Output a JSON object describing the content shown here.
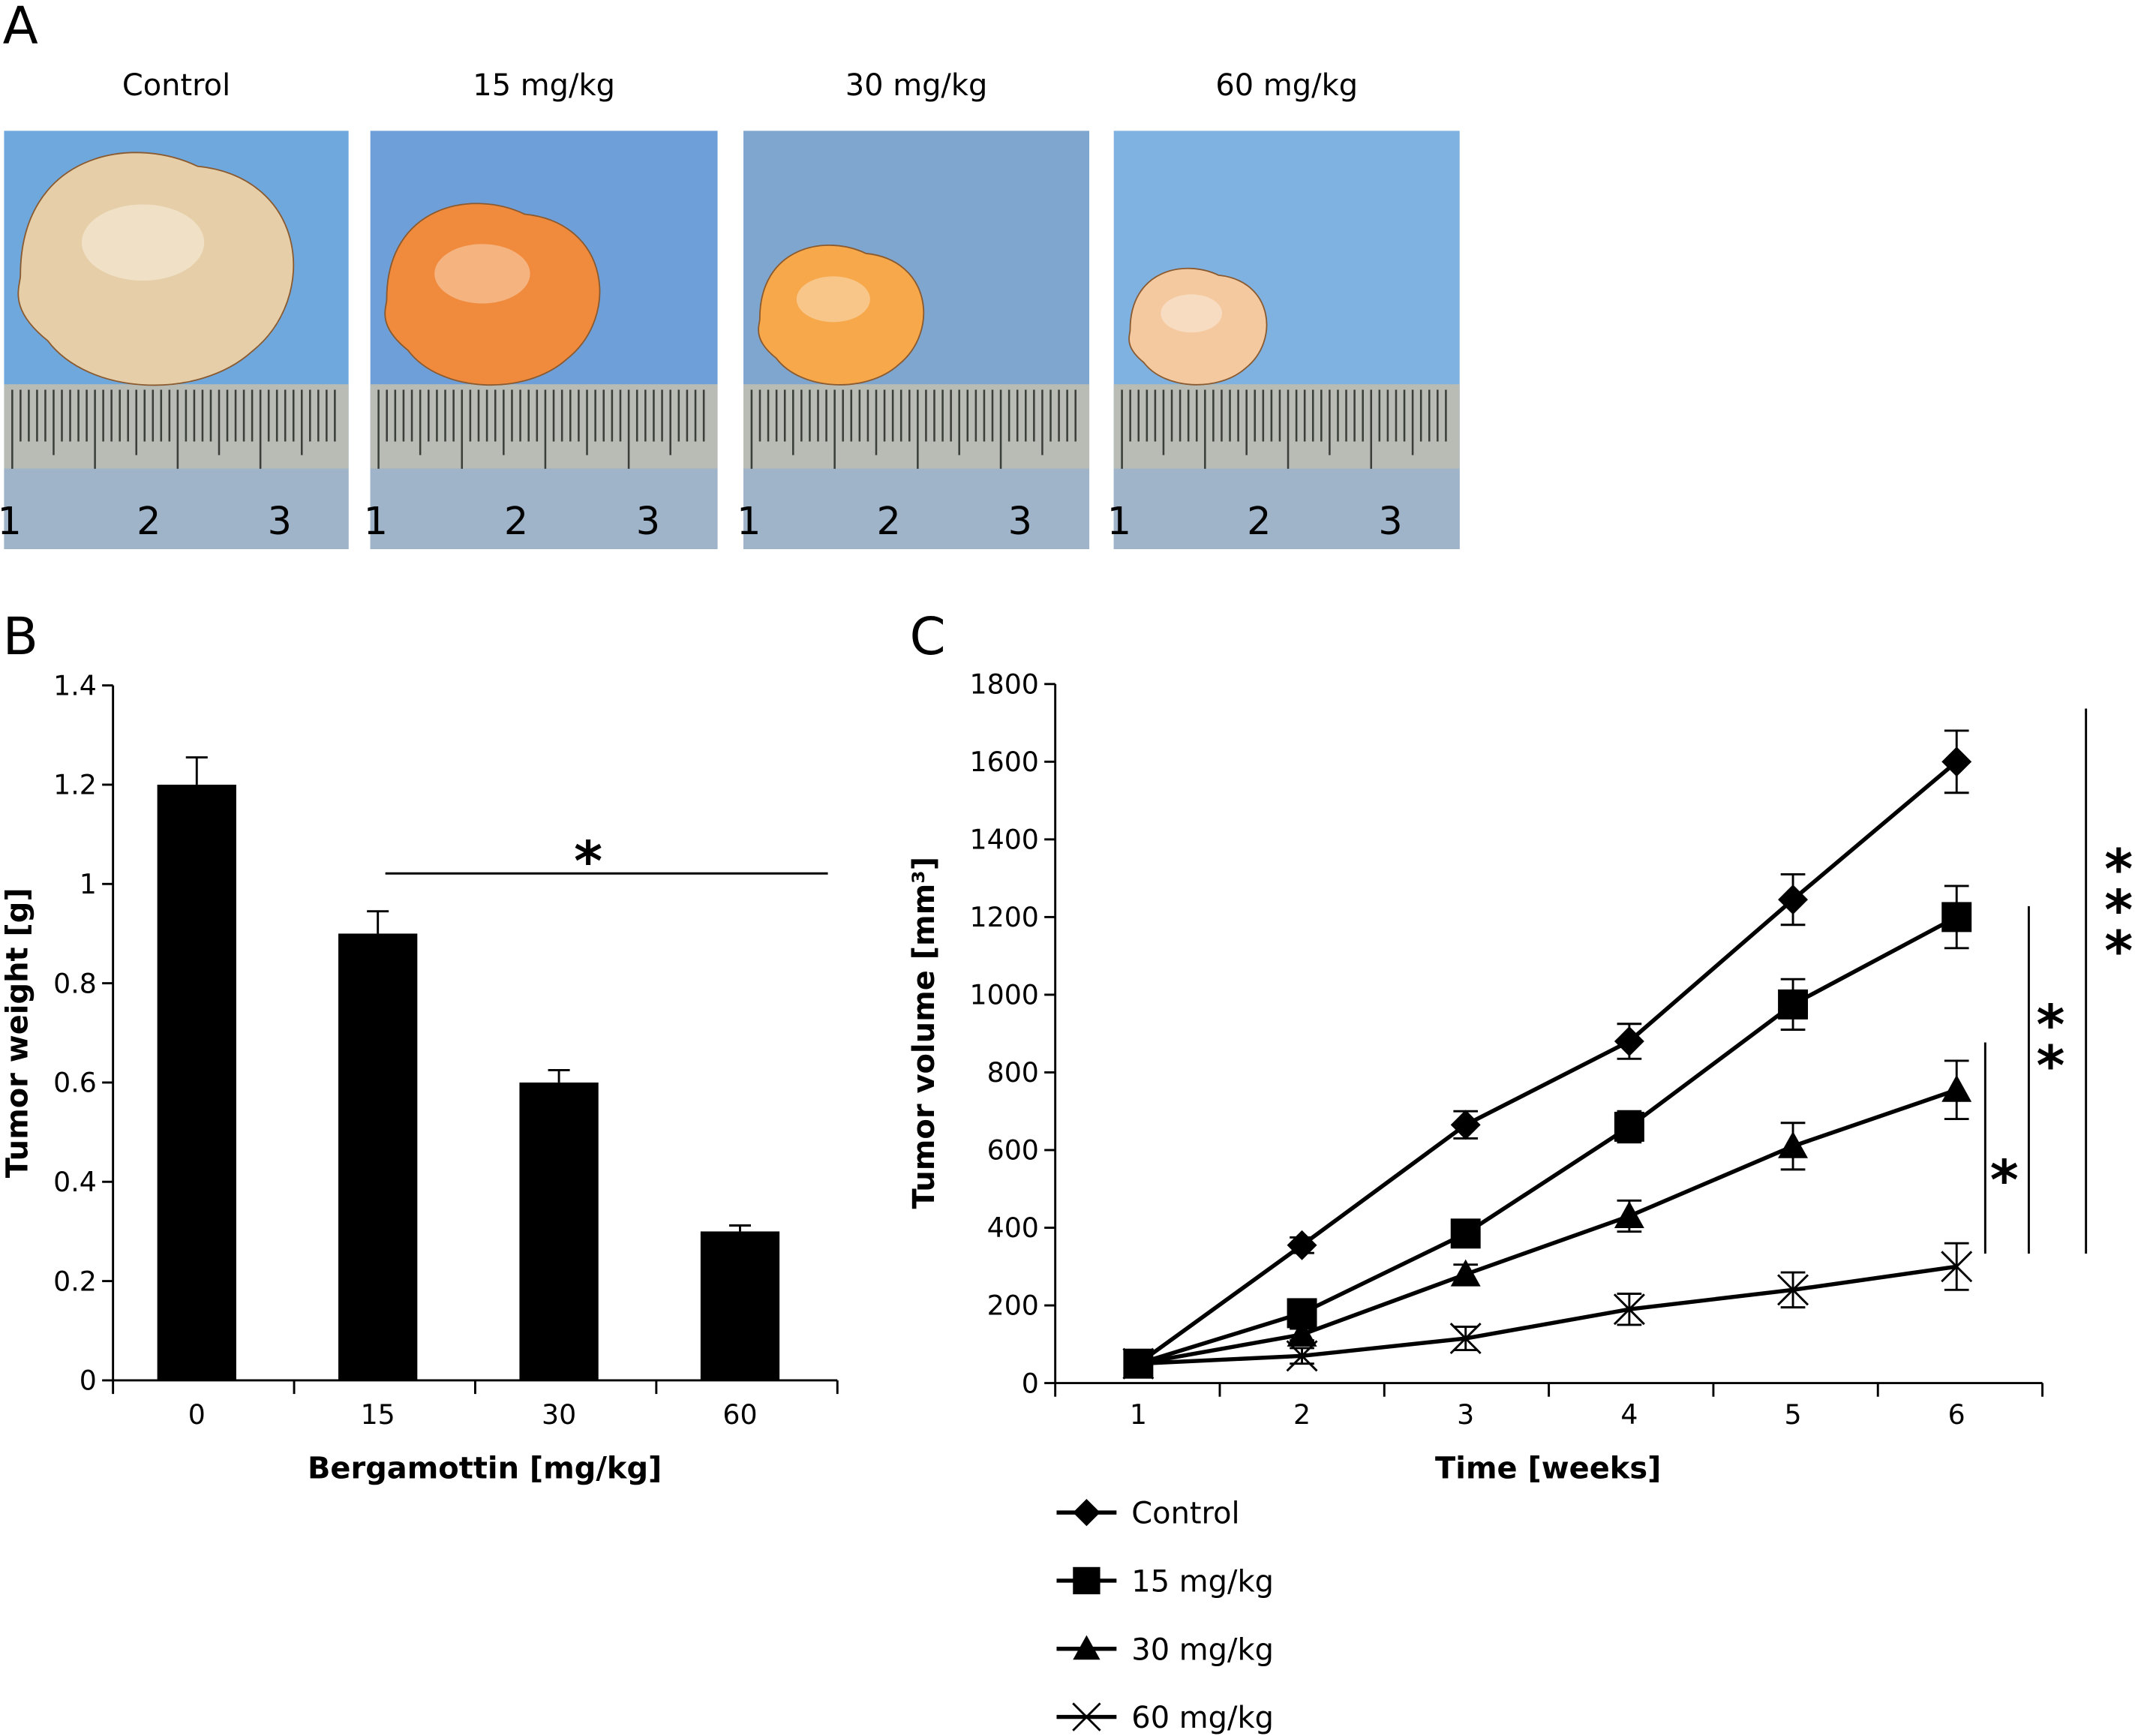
{
  "panels": {
    "A": {
      "letter": "A",
      "photos": [
        {
          "label": "Control",
          "tumor_color": "#e6cfa8",
          "tumor_scale": 1.0,
          "bg": "#6fa8dc"
        },
        {
          "label": "15 mg/kg",
          "tumor_color": "#f08a3c",
          "tumor_scale": 0.78,
          "bg": "#6f9fd8"
        },
        {
          "label": "30 mg/kg",
          "tumor_color": "#f6a84a",
          "tumor_scale": 0.6,
          "bg": "#7fa6cf"
        },
        {
          "label": "60 mg/kg",
          "tumor_color": "#f5c9a0",
          "tumor_scale": 0.5,
          "bg": "#7fb2e0"
        }
      ],
      "ruler_numbers": [
        "1",
        "2",
        "3"
      ]
    },
    "B": {
      "letter": "B"
    },
    "C": {
      "letter": "C"
    }
  },
  "chart_data": [
    {
      "id": "B",
      "type": "bar",
      "title": "",
      "xlabel": "Bergamottin [mg/kg]",
      "ylabel": "Tumor weight [g]",
      "categories": [
        "0",
        "15",
        "30",
        "60"
      ],
      "values": [
        1.2,
        0.9,
        0.6,
        0.3
      ],
      "error_upper": [
        0.055,
        0.045,
        0.025,
        0.012
      ],
      "ylim": [
        0,
        1.4
      ],
      "yticks": [
        0,
        0.2,
        0.4,
        0.6,
        0.8,
        1,
        1.2,
        1.4
      ],
      "ytick_labels": [
        "0",
        "0.2",
        "0.4",
        "0.6",
        "0.8",
        "1",
        "1.2",
        "1.4"
      ],
      "bar_color": "#000000",
      "grid": false,
      "annotations": [
        {
          "text": "*",
          "type": "significance-bracket",
          "from_category": "15",
          "to_category": "60"
        }
      ]
    },
    {
      "id": "C",
      "type": "line",
      "title": "",
      "xlabel": "Time [weeks]",
      "ylabel": "Tumor volume [mm³]",
      "x": [
        1,
        2,
        3,
        4,
        5,
        6
      ],
      "xlim": [
        0.5,
        6.5
      ],
      "ylim": [
        0,
        1800
      ],
      "yticks": [
        0,
        200,
        400,
        600,
        800,
        1000,
        1200,
        1400,
        1600,
        1800
      ],
      "ytick_labels": [
        "0",
        "200",
        "400",
        "600",
        "800",
        "1000",
        "1200",
        "1400",
        "1600",
        "1800"
      ],
      "xtick_labels": [
        "1",
        "2",
        "3",
        "4",
        "5",
        "6"
      ],
      "grid": false,
      "legend_position": "bottom-left",
      "series": [
        {
          "name": "Control",
          "marker": "diamond",
          "values": [
            50,
            355,
            665,
            880,
            1245,
            1600
          ],
          "errors": [
            20,
            20,
            35,
            45,
            65,
            80
          ]
        },
        {
          "name": "15 mg/kg",
          "marker": "square",
          "values": [
            50,
            180,
            385,
            660,
            975,
            1200
          ],
          "errors": [
            15,
            20,
            25,
            40,
            65,
            80
          ]
        },
        {
          "name": "30 mg/kg",
          "marker": "triangle",
          "values": [
            50,
            125,
            280,
            430,
            610,
            755
          ],
          "errors": [
            15,
            15,
            25,
            40,
            60,
            75
          ]
        },
        {
          "name": "60 mg/kg",
          "marker": "x",
          "values": [
            50,
            70,
            115,
            190,
            240,
            300
          ],
          "errors": [
            15,
            20,
            30,
            40,
            45,
            60
          ]
        }
      ],
      "annotations": [
        {
          "text": "*",
          "type": "significance-bracket",
          "compare": [
            "30 mg/kg",
            "60 mg/kg"
          ]
        },
        {
          "text": "**",
          "type": "significance-bracket",
          "compare": [
            "15 mg/kg",
            "60 mg/kg"
          ]
        },
        {
          "text": "***",
          "type": "significance-bracket",
          "compare": [
            "Control",
            "60 mg/kg"
          ]
        }
      ]
    }
  ]
}
